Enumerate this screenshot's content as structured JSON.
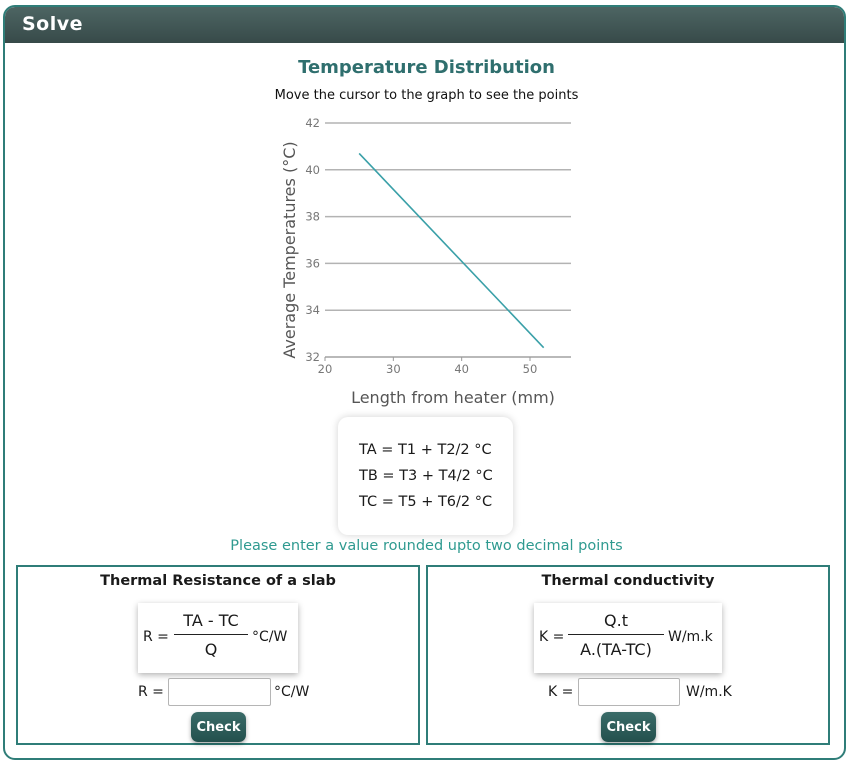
{
  "header": {
    "title": "Solve"
  },
  "chart": {
    "title": "Temperature Distribution",
    "subtitle": "Move the cursor to the graph to see the points"
  },
  "chart_data": {
    "type": "line",
    "xlabel": "Length from heater (mm)",
    "ylabel": "Average Temperatures (°C)",
    "xlim": [
      20,
      56
    ],
    "ylim": [
      32,
      42
    ],
    "xticks": [
      20,
      30,
      40,
      50
    ],
    "yticks": [
      32,
      34,
      36,
      38,
      40,
      42
    ],
    "grid": "horizontal",
    "series": [
      {
        "x": [
          25,
          52
        ],
        "y": [
          40.7,
          32.4
        ],
        "color": "#3aa0a8"
      }
    ]
  },
  "formulas": {
    "ta": "TA = T1 + T2/2 °C",
    "tb": "TB = T3 + T4/2 °C",
    "tc": "TC = T5 + T6/2 °C"
  },
  "hint": "Please enter a value rounded upto two decimal points",
  "resistance": {
    "title": "Thermal Resistance of a slab",
    "lhs": "R =",
    "numerator": "TA - TC",
    "denominator": "Q",
    "unit": "°C/W",
    "input_label": "R =",
    "input_value": "",
    "input_unit": "°C/W",
    "button": "Check"
  },
  "conductivity": {
    "title": "Thermal conductivity",
    "lhs": "K =",
    "numerator": "Q.t",
    "denominator": "A.(TA-TC)",
    "unit": "W/m.k",
    "input_label": "K =",
    "input_value": "",
    "input_unit": "W/m.K",
    "button": "Check"
  }
}
